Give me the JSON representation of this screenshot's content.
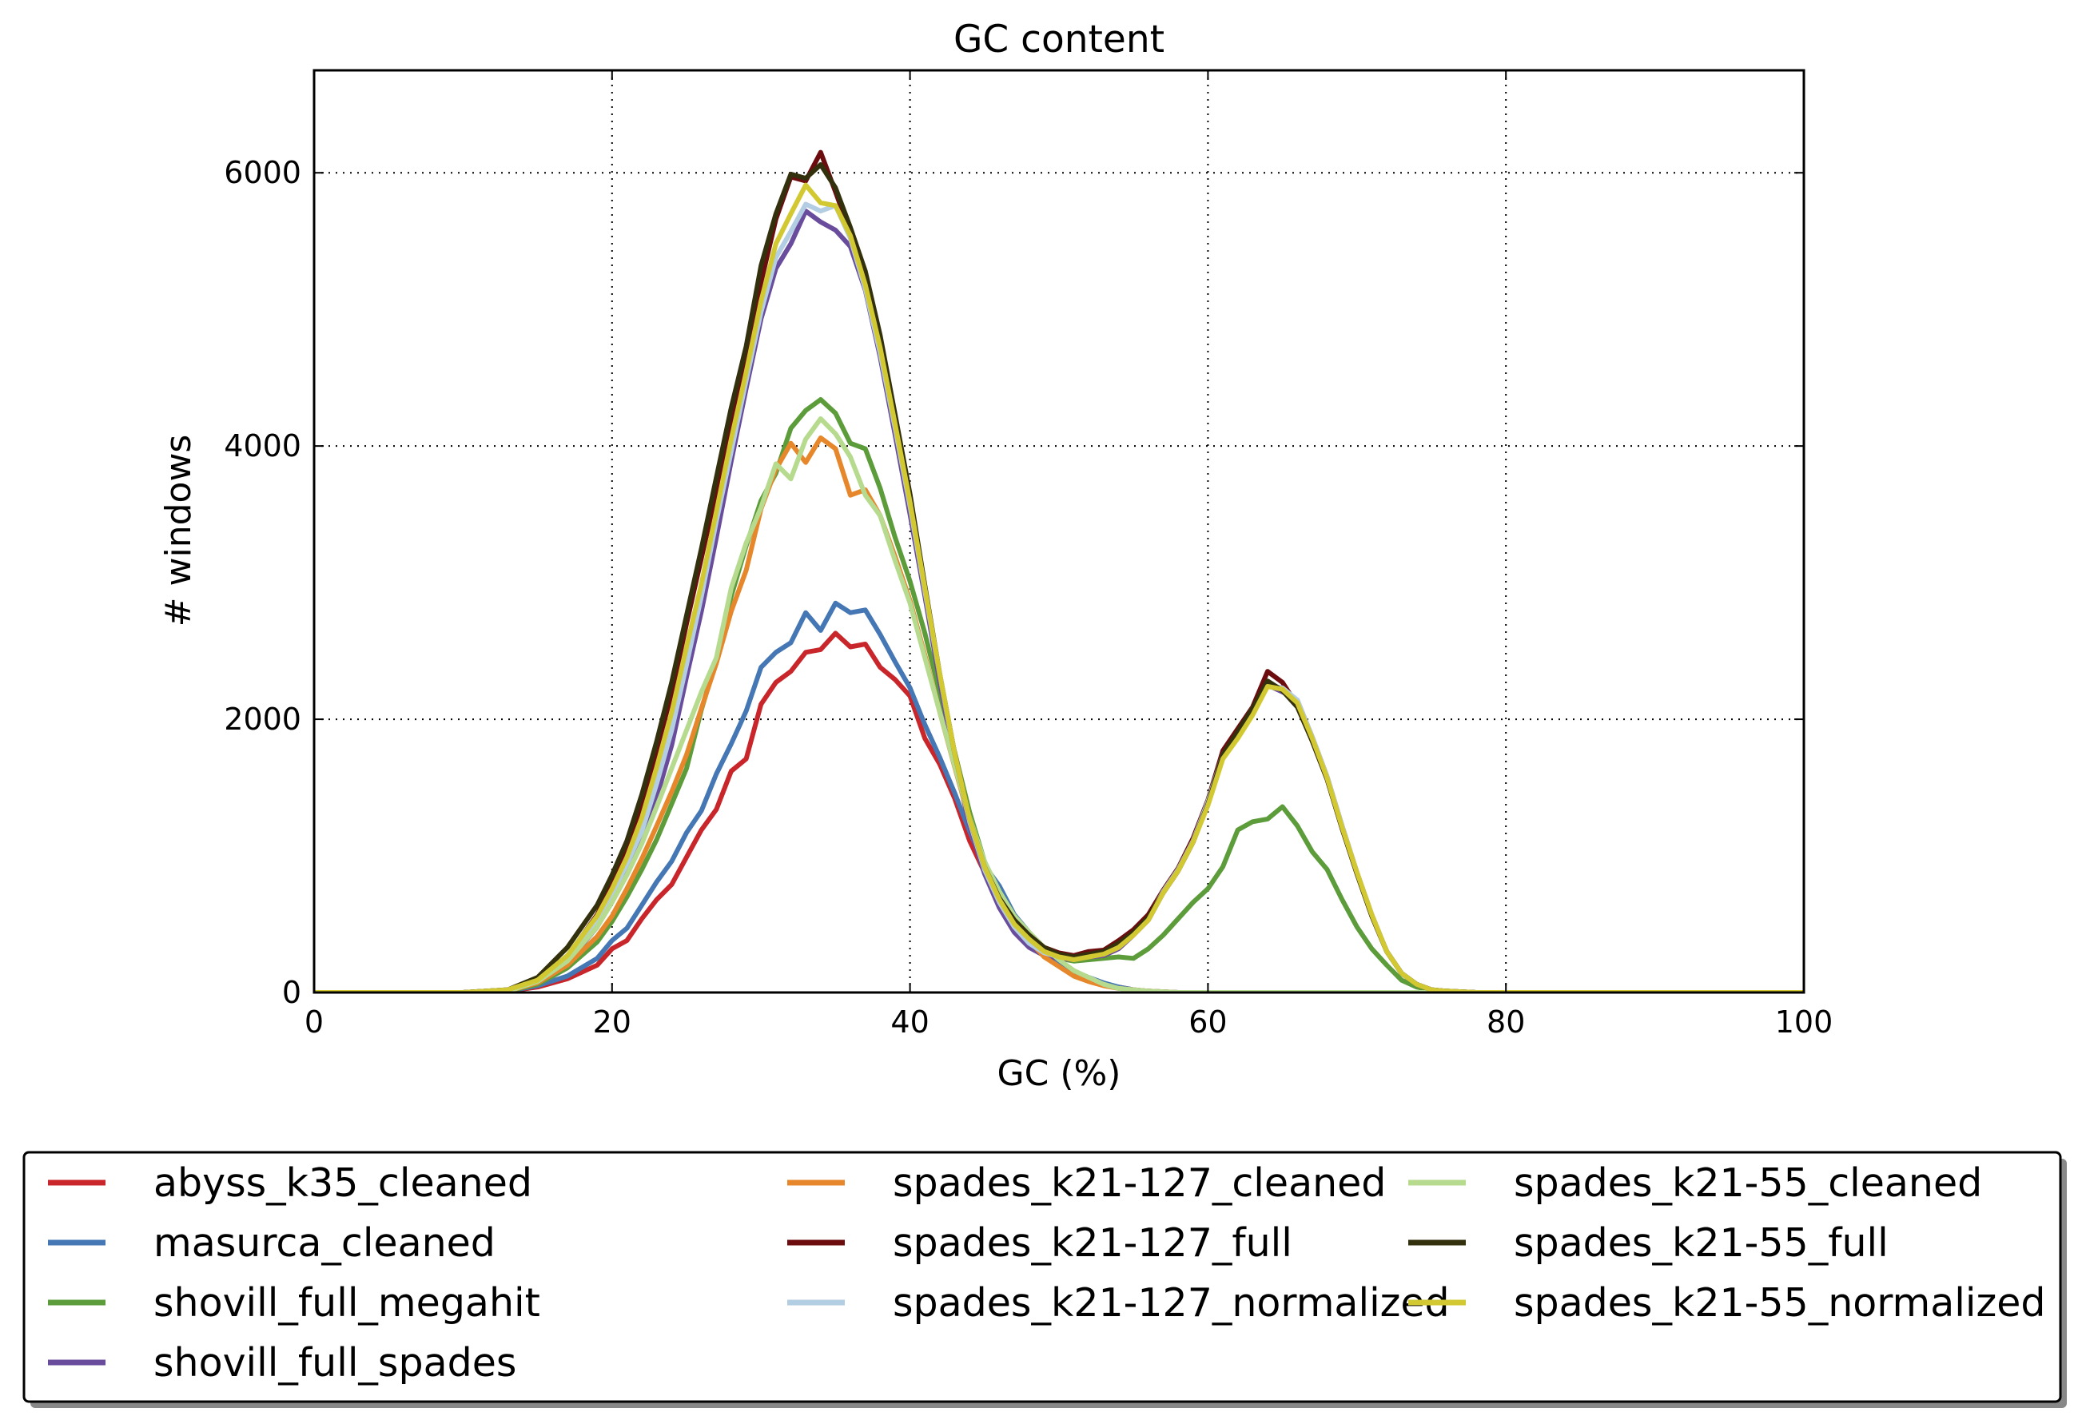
{
  "chart_data": {
    "type": "line",
    "title": "GC content",
    "xlabel": "GC (%)",
    "ylabel": "# windows",
    "xlim": [
      0,
      100
    ],
    "ylim": [
      0,
      6750
    ],
    "xticks": [
      0,
      20,
      40,
      60,
      80,
      100
    ],
    "yticks": [
      0,
      2000,
      4000,
      6000
    ],
    "xtick_labels": [
      "0",
      "20",
      "40",
      "60",
      "80",
      "100"
    ],
    "ytick_labels": [
      "0",
      "2000",
      "4000",
      "6000"
    ],
    "grid": true,
    "legend_position": "bottom",
    "series": [
      {
        "name": "abyss_k35_cleaned",
        "color": "#c8262a",
        "x": [
          0,
          10,
          13,
          15,
          17,
          19,
          20,
          21,
          22,
          23,
          24,
          25,
          26,
          27,
          28,
          29,
          30,
          31,
          32,
          33,
          34,
          35,
          36,
          37,
          38,
          39,
          40,
          41,
          42,
          43,
          44,
          45,
          46,
          47,
          48,
          49,
          50,
          51,
          52,
          53,
          54,
          55,
          56,
          58,
          60,
          100
        ],
        "y": [
          0,
          0,
          10,
          40,
          100,
          200,
          320,
          380,
          540,
          680,
          790,
          990,
          1190,
          1340,
          1620,
          1710,
          2110,
          2270,
          2350,
          2490,
          2510,
          2630,
          2530,
          2550,
          2380,
          2290,
          2170,
          1860,
          1670,
          1420,
          1110,
          880,
          760,
          560,
          430,
          300,
          220,
          140,
          100,
          60,
          40,
          20,
          10,
          0,
          0,
          0
        ]
      },
      {
        "name": "masurca_cleaned",
        "color": "#4577b4",
        "x": [
          0,
          10,
          13,
          15,
          17,
          19,
          20,
          21,
          22,
          23,
          24,
          25,
          26,
          27,
          28,
          29,
          30,
          31,
          32,
          33,
          34,
          35,
          36,
          37,
          38,
          39,
          40,
          41,
          42,
          43,
          44,
          45,
          46,
          47,
          48,
          49,
          50,
          51,
          52,
          53,
          54,
          55,
          56,
          58,
          60,
          100
        ],
        "y": [
          0,
          0,
          10,
          50,
          120,
          250,
          380,
          470,
          640,
          810,
          960,
          1170,
          1330,
          1600,
          1820,
          2060,
          2380,
          2490,
          2560,
          2780,
          2650,
          2850,
          2780,
          2800,
          2620,
          2420,
          2230,
          1960,
          1720,
          1460,
          1180,
          930,
          780,
          570,
          440,
          310,
          230,
          150,
          110,
          70,
          40,
          20,
          10,
          0,
          0,
          0
        ]
      },
      {
        "name": "shovill_full_megahit",
        "color": "#5d9c3a",
        "x": [
          0,
          10,
          13,
          15,
          17,
          19,
          20,
          21,
          22,
          23,
          24,
          25,
          26,
          27,
          28,
          29,
          30,
          31,
          32,
          33,
          34,
          35,
          36,
          37,
          38,
          39,
          40,
          41,
          42,
          43,
          44,
          45,
          46,
          47,
          48,
          49,
          50,
          51,
          52,
          53,
          54,
          55,
          56,
          57,
          58,
          59,
          60,
          61,
          62,
          63,
          64,
          65,
          66,
          67,
          68,
          69,
          70,
          71,
          72,
          73,
          74,
          75,
          76,
          100
        ],
        "y": [
          0,
          0,
          10,
          60,
          180,
          370,
          520,
          700,
          900,
          1120,
          1380,
          1640,
          2070,
          2440,
          2900,
          3270,
          3600,
          3800,
          4130,
          4260,
          4340,
          4240,
          4020,
          3980,
          3690,
          3330,
          3010,
          2630,
          2190,
          1760,
          1320,
          960,
          720,
          520,
          400,
          300,
          250,
          230,
          240,
          250,
          260,
          250,
          320,
          420,
          540,
          660,
          760,
          920,
          1190,
          1250,
          1270,
          1360,
          1220,
          1030,
          900,
          680,
          480,
          320,
          200,
          90,
          40,
          20,
          0,
          0
        ]
      },
      {
        "name": "shovill_full_spades",
        "color": "#6a4c9c",
        "x": [
          0,
          10,
          13,
          15,
          17,
          19,
          20,
          21,
          22,
          23,
          24,
          25,
          26,
          27,
          28,
          29,
          30,
          31,
          32,
          33,
          34,
          35,
          36,
          37,
          38,
          39,
          40,
          41,
          42,
          43,
          44,
          45,
          46,
          47,
          48,
          49,
          50,
          51,
          52,
          53,
          54,
          55,
          56,
          57,
          58,
          59,
          60,
          61,
          62,
          63,
          64,
          65,
          66,
          67,
          68,
          69,
          70,
          71,
          72,
          73,
          74,
          75,
          76,
          78,
          80,
          100
        ],
        "y": [
          0,
          0,
          20,
          80,
          220,
          480,
          700,
          900,
          1110,
          1430,
          1810,
          2310,
          2790,
          3330,
          3890,
          4420,
          4930,
          5300,
          5480,
          5720,
          5640,
          5580,
          5460,
          5140,
          4650,
          4080,
          3500,
          2900,
          2270,
          1700,
          1220,
          870,
          620,
          440,
          330,
          270,
          250,
          240,
          260,
          270,
          320,
          420,
          530,
          730,
          890,
          1100,
          1380,
          1730,
          1880,
          2060,
          2250,
          2200,
          2140,
          1870,
          1580,
          1220,
          880,
          570,
          300,
          140,
          60,
          20,
          10,
          0,
          0,
          0
        ]
      },
      {
        "name": "spades_k21-127_cleaned",
        "color": "#e6872b",
        "x": [
          0,
          10,
          13,
          15,
          17,
          19,
          20,
          21,
          22,
          23,
          24,
          25,
          26,
          27,
          28,
          29,
          30,
          31,
          32,
          33,
          34,
          35,
          36,
          37,
          38,
          39,
          40,
          41,
          42,
          43,
          44,
          45,
          46,
          47,
          48,
          49,
          50,
          51,
          52,
          53,
          54,
          55,
          56,
          58,
          60,
          100
        ],
        "y": [
          0,
          0,
          10,
          70,
          200,
          410,
          560,
          760,
          980,
          1220,
          1470,
          1740,
          2080,
          2410,
          2790,
          3090,
          3540,
          3830,
          4020,
          3880,
          4060,
          3980,
          3640,
          3680,
          3490,
          3190,
          2870,
          2470,
          2050,
          1650,
          1260,
          920,
          700,
          510,
          380,
          260,
          190,
          120,
          80,
          50,
          30,
          20,
          10,
          0,
          0,
          0
        ]
      },
      {
        "name": "spades_k21-127_full",
        "color": "#6d0c0e",
        "x": [
          0,
          10,
          13,
          15,
          17,
          19,
          20,
          21,
          22,
          23,
          24,
          25,
          26,
          27,
          28,
          29,
          30,
          31,
          32,
          33,
          34,
          35,
          36,
          37,
          38,
          39,
          40,
          41,
          42,
          43,
          44,
          45,
          46,
          47,
          48,
          49,
          50,
          51,
          52,
          53,
          54,
          55,
          56,
          57,
          58,
          59,
          60,
          61,
          62,
          63,
          64,
          65,
          66,
          67,
          68,
          69,
          70,
          71,
          72,
          73,
          74,
          75,
          76,
          78,
          80,
          100
        ],
        "y": [
          0,
          0,
          20,
          80,
          260,
          570,
          790,
          1060,
          1360,
          1780,
          2190,
          2700,
          3180,
          3670,
          4200,
          4660,
          5200,
          5660,
          5970,
          5940,
          6150,
          5860,
          5560,
          5240,
          4750,
          4190,
          3620,
          2970,
          2320,
          1750,
          1270,
          920,
          690,
          530,
          420,
          330,
          290,
          270,
          300,
          310,
          380,
          460,
          570,
          750,
          910,
          1130,
          1410,
          1770,
          1930,
          2090,
          2350,
          2270,
          2100,
          1840,
          1560,
          1200,
          870,
          560,
          300,
          140,
          60,
          20,
          10,
          0,
          0,
          0
        ]
      },
      {
        "name": "spades_k21-127_normalized",
        "color": "#b3cde3",
        "x": [
          0,
          10,
          13,
          15,
          17,
          19,
          20,
          21,
          22,
          23,
          24,
          25,
          26,
          27,
          28,
          29,
          30,
          31,
          32,
          33,
          34,
          35,
          36,
          37,
          38,
          39,
          40,
          41,
          42,
          43,
          44,
          45,
          46,
          47,
          48,
          49,
          50,
          51,
          52,
          53,
          54,
          55,
          56,
          57,
          58,
          59,
          60,
          61,
          62,
          63,
          64,
          65,
          66,
          67,
          68,
          69,
          70,
          71,
          72,
          73,
          74,
          75,
          76,
          78,
          80,
          100
        ],
        "y": [
          0,
          0,
          20,
          80,
          230,
          500,
          720,
          940,
          1180,
          1530,
          1920,
          2400,
          2900,
          3450,
          3960,
          4480,
          4980,
          5380,
          5570,
          5770,
          5720,
          5760,
          5520,
          5150,
          4680,
          4130,
          3560,
          2940,
          2320,
          1730,
          1250,
          900,
          660,
          480,
          360,
          290,
          260,
          250,
          270,
          290,
          340,
          430,
          540,
          740,
          900,
          1110,
          1400,
          1740,
          1900,
          2080,
          2250,
          2230,
          2140,
          1870,
          1580,
          1220,
          880,
          570,
          300,
          140,
          60,
          20,
          10,
          0,
          0,
          0
        ]
      },
      {
        "name": "spades_k21-55_cleaned",
        "color": "#b6db8e",
        "x": [
          0,
          10,
          13,
          15,
          17,
          19,
          20,
          21,
          22,
          23,
          24,
          25,
          26,
          27,
          28,
          29,
          30,
          31,
          32,
          33,
          34,
          35,
          36,
          37,
          38,
          39,
          40,
          41,
          42,
          43,
          44,
          45,
          46,
          47,
          48,
          49,
          50,
          51,
          52,
          53,
          54,
          55,
          56,
          58,
          60,
          100
        ],
        "y": [
          0,
          0,
          10,
          80,
          230,
          480,
          660,
          860,
          1090,
          1360,
          1640,
          1920,
          2200,
          2450,
          2960,
          3290,
          3550,
          3870,
          3760,
          4050,
          4200,
          4090,
          3920,
          3640,
          3490,
          3160,
          2850,
          2450,
          2050,
          1660,
          1280,
          960,
          740,
          560,
          440,
          330,
          240,
          160,
          110,
          60,
          30,
          20,
          10,
          0,
          0,
          0
        ]
      },
      {
        "name": "spades_k21-55_full",
        "color": "#33310d",
        "x": [
          0,
          10,
          13,
          15,
          17,
          19,
          20,
          21,
          22,
          23,
          24,
          25,
          26,
          27,
          28,
          29,
          30,
          31,
          32,
          33,
          34,
          35,
          36,
          37,
          38,
          39,
          40,
          41,
          42,
          43,
          44,
          45,
          46,
          47,
          48,
          49,
          50,
          51,
          52,
          53,
          54,
          55,
          56,
          57,
          58,
          59,
          60,
          61,
          62,
          63,
          64,
          65,
          66,
          67,
          68,
          69,
          70,
          71,
          72,
          73,
          74,
          75,
          76,
          78,
          80,
          100
        ],
        "y": [
          0,
          0,
          20,
          110,
          330,
          640,
          860,
          1110,
          1450,
          1840,
          2270,
          2760,
          3250,
          3770,
          4280,
          4730,
          5320,
          5700,
          5990,
          5960,
          6060,
          5890,
          5600,
          5280,
          4810,
          4230,
          3650,
          2980,
          2330,
          1750,
          1270,
          920,
          690,
          530,
          420,
          330,
          280,
          260,
          280,
          300,
          360,
          440,
          550,
          730,
          890,
          1100,
          1380,
          1740,
          1910,
          2080,
          2280,
          2210,
          2090,
          1840,
          1560,
          1200,
          870,
          560,
          300,
          140,
          60,
          20,
          10,
          0,
          0,
          0
        ]
      },
      {
        "name": "spades_k21-55_normalized",
        "color": "#d2c932",
        "x": [
          0,
          10,
          13,
          15,
          17,
          19,
          20,
          21,
          22,
          23,
          24,
          25,
          26,
          27,
          28,
          29,
          30,
          31,
          32,
          33,
          34,
          35,
          36,
          37,
          38,
          39,
          40,
          41,
          42,
          43,
          44,
          45,
          46,
          47,
          48,
          49,
          50,
          51,
          52,
          53,
          54,
          55,
          56,
          57,
          58,
          59,
          60,
          61,
          62,
          63,
          64,
          65,
          66,
          67,
          68,
          69,
          70,
          71,
          72,
          73,
          74,
          75,
          76,
          78,
          80,
          100
        ],
        "y": [
          0,
          0,
          20,
          90,
          270,
          560,
          760,
          990,
          1280,
          1650,
          2050,
          2530,
          2990,
          3520,
          4050,
          4540,
          5060,
          5480,
          5700,
          5910,
          5780,
          5760,
          5540,
          5180,
          4720,
          4160,
          3590,
          2960,
          2330,
          1750,
          1270,
          920,
          680,
          500,
          390,
          300,
          260,
          240,
          260,
          280,
          330,
          420,
          530,
          730,
          890,
          1100,
          1370,
          1710,
          1860,
          2030,
          2240,
          2220,
          2120,
          1860,
          1570,
          1210,
          880,
          570,
          300,
          140,
          60,
          20,
          10,
          0,
          0,
          0
        ]
      }
    ]
  }
}
